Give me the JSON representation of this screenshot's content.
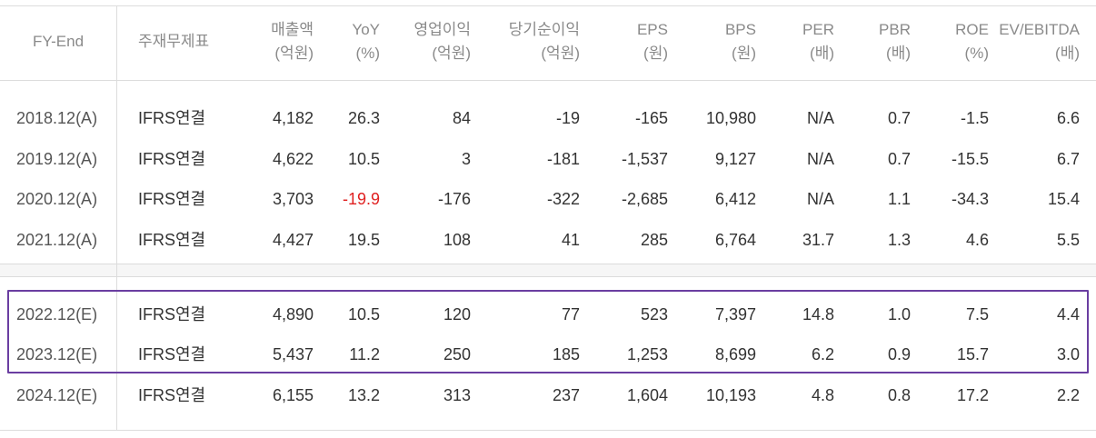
{
  "table": {
    "headers": [
      {
        "l1": "FY-End",
        "l2": ""
      },
      {
        "l1": "주재무제표",
        "l2": ""
      },
      {
        "l1": "매출액",
        "l2": "(억원)"
      },
      {
        "l1": "YoY",
        "l2": "(%)"
      },
      {
        "l1": "영업이익",
        "l2": "(억원)"
      },
      {
        "l1": "당기순이익",
        "l2": "(억원)"
      },
      {
        "l1": "EPS",
        "l2": "(원)"
      },
      {
        "l1": "BPS",
        "l2": "(원)"
      },
      {
        "l1": "PER",
        "l2": "(배)"
      },
      {
        "l1": "PBR",
        "l2": "(배)"
      },
      {
        "l1": "ROE",
        "l2": "(%)"
      },
      {
        "l1": "EV/EBITDA",
        "l2": "(배)"
      }
    ],
    "rows": [
      [
        "2018.12(A)",
        "IFRS연결",
        "4,182",
        "26.3",
        "84",
        "-19",
        "-165",
        "10,980",
        "N/A",
        "0.7",
        "-1.5",
        "6.6"
      ],
      [
        "2019.12(A)",
        "IFRS연결",
        "4,622",
        "10.5",
        "3",
        "-181",
        "-1,537",
        "9,127",
        "N/A",
        "0.7",
        "-15.5",
        "6.7"
      ],
      [
        "2020.12(A)",
        "IFRS연결",
        "3,703",
        "-19.9",
        "-176",
        "-322",
        "-2,685",
        "6,412",
        "N/A",
        "1.1",
        "-34.3",
        "15.4"
      ],
      [
        "2021.12(A)",
        "IFRS연결",
        "4,427",
        "19.5",
        "108",
        "41",
        "285",
        "6,764",
        "31.7",
        "1.3",
        "4.6",
        "5.5"
      ],
      [
        "2022.12(E)",
        "IFRS연결",
        "4,890",
        "10.5",
        "120",
        "77",
        "523",
        "7,397",
        "14.8",
        "1.0",
        "7.5",
        "4.4"
      ],
      [
        "2023.12(E)",
        "IFRS연결",
        "5,437",
        "11.2",
        "250",
        "185",
        "1,253",
        "8,699",
        "6.2",
        "0.9",
        "15.7",
        "3.0"
      ],
      [
        "2024.12(E)",
        "IFRS연결",
        "6,155",
        "13.2",
        "313",
        "237",
        "1,604",
        "10,193",
        "4.8",
        "0.8",
        "17.2",
        "2.2"
      ]
    ],
    "negative_highlight_color": "#e02020",
    "highlight_border_color": "#6a3ea1"
  }
}
